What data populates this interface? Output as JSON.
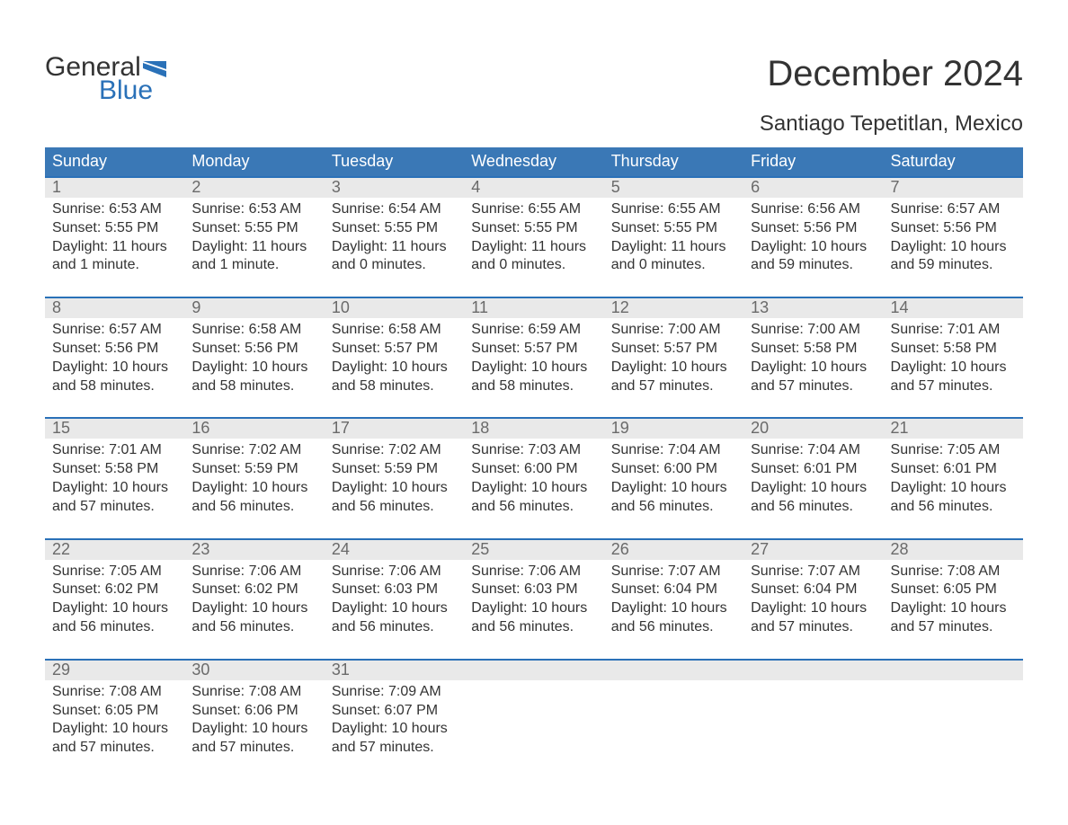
{
  "logo": {
    "general": "General",
    "blue": "Blue"
  },
  "title": "December 2024",
  "location": "Santiago Tepetitlan, Mexico",
  "colors": {
    "brand_blue": "#2a71b8",
    "header_bg": "#3a78b6",
    "daynum_bg": "#e9e9e9",
    "text_dark": "#333333",
    "text_muted": "#6a6a6a",
    "page_bg": "#ffffff"
  },
  "dow": [
    "Sunday",
    "Monday",
    "Tuesday",
    "Wednesday",
    "Thursday",
    "Friday",
    "Saturday"
  ],
  "weeks": [
    [
      {
        "n": "1",
        "sunrise": "6:53 AM",
        "sunset": "5:55 PM",
        "dl1": "11 hours",
        "dl2": "and 1 minute."
      },
      {
        "n": "2",
        "sunrise": "6:53 AM",
        "sunset": "5:55 PM",
        "dl1": "11 hours",
        "dl2": "and 1 minute."
      },
      {
        "n": "3",
        "sunrise": "6:54 AM",
        "sunset": "5:55 PM",
        "dl1": "11 hours",
        "dl2": "and 0 minutes."
      },
      {
        "n": "4",
        "sunrise": "6:55 AM",
        "sunset": "5:55 PM",
        "dl1": "11 hours",
        "dl2": "and 0 minutes."
      },
      {
        "n": "5",
        "sunrise": "6:55 AM",
        "sunset": "5:55 PM",
        "dl1": "11 hours",
        "dl2": "and 0 minutes."
      },
      {
        "n": "6",
        "sunrise": "6:56 AM",
        "sunset": "5:56 PM",
        "dl1": "10 hours",
        "dl2": "and 59 minutes."
      },
      {
        "n": "7",
        "sunrise": "6:57 AM",
        "sunset": "5:56 PM",
        "dl1": "10 hours",
        "dl2": "and 59 minutes."
      }
    ],
    [
      {
        "n": "8",
        "sunrise": "6:57 AM",
        "sunset": "5:56 PM",
        "dl1": "10 hours",
        "dl2": "and 58 minutes."
      },
      {
        "n": "9",
        "sunrise": "6:58 AM",
        "sunset": "5:56 PM",
        "dl1": "10 hours",
        "dl2": "and 58 minutes."
      },
      {
        "n": "10",
        "sunrise": "6:58 AM",
        "sunset": "5:57 PM",
        "dl1": "10 hours",
        "dl2": "and 58 minutes."
      },
      {
        "n": "11",
        "sunrise": "6:59 AM",
        "sunset": "5:57 PM",
        "dl1": "10 hours",
        "dl2": "and 58 minutes."
      },
      {
        "n": "12",
        "sunrise": "7:00 AM",
        "sunset": "5:57 PM",
        "dl1": "10 hours",
        "dl2": "and 57 minutes."
      },
      {
        "n": "13",
        "sunrise": "7:00 AM",
        "sunset": "5:58 PM",
        "dl1": "10 hours",
        "dl2": "and 57 minutes."
      },
      {
        "n": "14",
        "sunrise": "7:01 AM",
        "sunset": "5:58 PM",
        "dl1": "10 hours",
        "dl2": "and 57 minutes."
      }
    ],
    [
      {
        "n": "15",
        "sunrise": "7:01 AM",
        "sunset": "5:58 PM",
        "dl1": "10 hours",
        "dl2": "and 57 minutes."
      },
      {
        "n": "16",
        "sunrise": "7:02 AM",
        "sunset": "5:59 PM",
        "dl1": "10 hours",
        "dl2": "and 56 minutes."
      },
      {
        "n": "17",
        "sunrise": "7:02 AM",
        "sunset": "5:59 PM",
        "dl1": "10 hours",
        "dl2": "and 56 minutes."
      },
      {
        "n": "18",
        "sunrise": "7:03 AM",
        "sunset": "6:00 PM",
        "dl1": "10 hours",
        "dl2": "and 56 minutes."
      },
      {
        "n": "19",
        "sunrise": "7:04 AM",
        "sunset": "6:00 PM",
        "dl1": "10 hours",
        "dl2": "and 56 minutes."
      },
      {
        "n": "20",
        "sunrise": "7:04 AM",
        "sunset": "6:01 PM",
        "dl1": "10 hours",
        "dl2": "and 56 minutes."
      },
      {
        "n": "21",
        "sunrise": "7:05 AM",
        "sunset": "6:01 PM",
        "dl1": "10 hours",
        "dl2": "and 56 minutes."
      }
    ],
    [
      {
        "n": "22",
        "sunrise": "7:05 AM",
        "sunset": "6:02 PM",
        "dl1": "10 hours",
        "dl2": "and 56 minutes."
      },
      {
        "n": "23",
        "sunrise": "7:06 AM",
        "sunset": "6:02 PM",
        "dl1": "10 hours",
        "dl2": "and 56 minutes."
      },
      {
        "n": "24",
        "sunrise": "7:06 AM",
        "sunset": "6:03 PM",
        "dl1": "10 hours",
        "dl2": "and 56 minutes."
      },
      {
        "n": "25",
        "sunrise": "7:06 AM",
        "sunset": "6:03 PM",
        "dl1": "10 hours",
        "dl2": "and 56 minutes."
      },
      {
        "n": "26",
        "sunrise": "7:07 AM",
        "sunset": "6:04 PM",
        "dl1": "10 hours",
        "dl2": "and 56 minutes."
      },
      {
        "n": "27",
        "sunrise": "7:07 AM",
        "sunset": "6:04 PM",
        "dl1": "10 hours",
        "dl2": "and 57 minutes."
      },
      {
        "n": "28",
        "sunrise": "7:08 AM",
        "sunset": "6:05 PM",
        "dl1": "10 hours",
        "dl2": "and 57 minutes."
      }
    ],
    [
      {
        "n": "29",
        "sunrise": "7:08 AM",
        "sunset": "6:05 PM",
        "dl1": "10 hours",
        "dl2": "and 57 minutes."
      },
      {
        "n": "30",
        "sunrise": "7:08 AM",
        "sunset": "6:06 PM",
        "dl1": "10 hours",
        "dl2": "and 57 minutes."
      },
      {
        "n": "31",
        "sunrise": "7:09 AM",
        "sunset": "6:07 PM",
        "dl1": "10 hours",
        "dl2": "and 57 minutes."
      },
      null,
      null,
      null,
      null
    ]
  ],
  "labels": {
    "sunrise_prefix": "Sunrise: ",
    "sunset_prefix": "Sunset: ",
    "daylight_prefix": "Daylight: "
  }
}
